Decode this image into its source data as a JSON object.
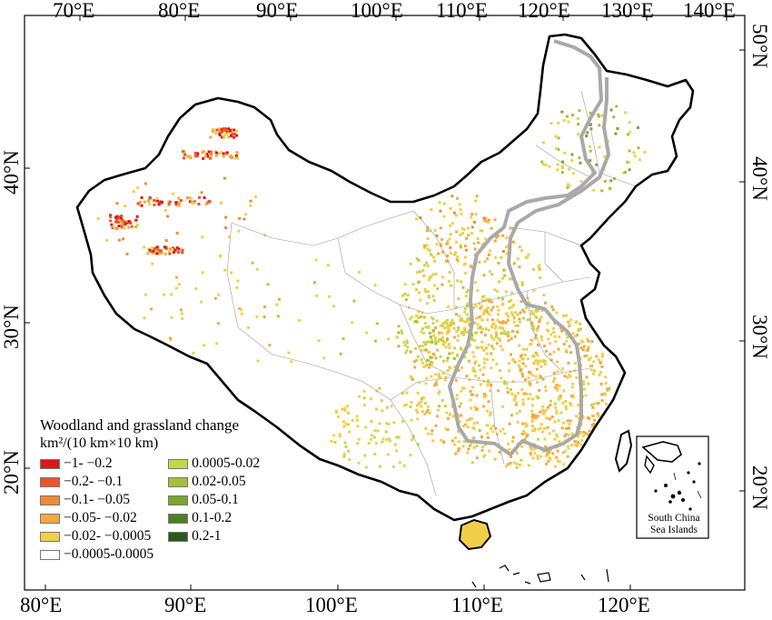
{
  "axes": {
    "top_labels": [
      "70°E",
      "80°E",
      "90°E",
      "100°E",
      "110°E",
      "120°E",
      "130°E",
      "140°E"
    ],
    "bottom_labels": [
      "80°E",
      "90°E",
      "100°E",
      "110°E",
      "120°E"
    ],
    "left_labels": [
      "40°N",
      "30°N",
      "20°N"
    ],
    "right_labels": [
      "50°N",
      "40°N",
      "30°N",
      "20°N"
    ]
  },
  "legend": {
    "title": "Woodland and grassland change",
    "unit": "km²/(10 km×10 km)",
    "loss_items": [
      {
        "label": "−1- −0.2",
        "color": "#d7191c"
      },
      {
        "label": "−0.2- −0.1",
        "color": "#e8562a"
      },
      {
        "label": "−0.1- −0.05",
        "color": "#ef8a38"
      },
      {
        "label": "−0.05- −0.02",
        "color": "#f4a93c"
      },
      {
        "label": "−0.02- −0.0005",
        "color": "#f1cf4a"
      },
      {
        "label": "−0.0005-0.0005",
        "color": "#ffffff"
      }
    ],
    "gain_items": [
      {
        "label": "0.0005-0.02",
        "color": "#c2d94a"
      },
      {
        "label": "0.02-0.05",
        "color": "#a3c23a"
      },
      {
        "label": "0.05-0.1",
        "color": "#7ba32f"
      },
      {
        "label": "0.1-0.2",
        "color": "#4f7d25"
      },
      {
        "label": "0.2-1",
        "color": "#2b5a1a"
      }
    ]
  },
  "inset": {
    "label": "South China Sea Islands"
  }
}
